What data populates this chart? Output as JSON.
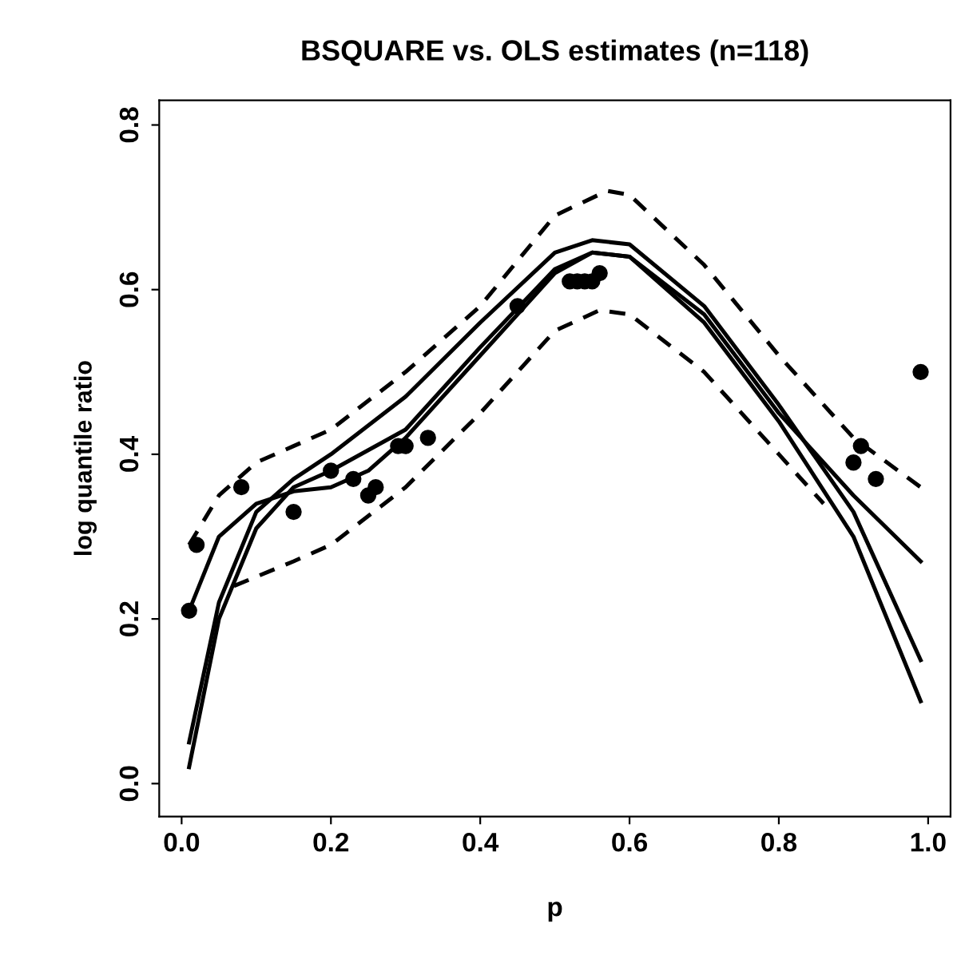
{
  "chart_data": {
    "type": "line",
    "title": "BSQUARE vs. OLS estimates (n=118)",
    "xlabel": "p",
    "ylabel": "log quantile ratio",
    "xlim": [
      -0.03,
      1.03
    ],
    "ylim": [
      -0.04,
      0.83
    ],
    "xticks": [
      {
        "value": 0,
        "label": "0.0"
      },
      0.2,
      0.4,
      0.6,
      0.8,
      {
        "value": 1,
        "label": "1.0"
      }
    ],
    "yticks": [
      {
        "value": 0,
        "label": "0.0"
      },
      0.2,
      0.4,
      0.6,
      0.8
    ],
    "grid": false,
    "legend": false,
    "series": [
      {
        "line_style": "dashed",
        "color": "#000000",
        "x": [
          0.01,
          0.05,
          0.1,
          0.15,
          0.2,
          0.3,
          0.4,
          0.5,
          0.57,
          0.6,
          0.7,
          0.8,
          0.9,
          0.99
        ],
        "values": [
          0.29,
          0.35,
          0.39,
          0.41,
          0.43,
          0.5,
          0.58,
          0.69,
          0.72,
          0.715,
          0.63,
          0.52,
          0.42,
          0.36
        ]
      },
      {
        "line_style": "dashed",
        "color": "#000000",
        "x": [
          0.07,
          0.15,
          0.2,
          0.3,
          0.4,
          0.5,
          0.56,
          0.6,
          0.7,
          0.8,
          0.86
        ],
        "values": [
          0.24,
          0.27,
          0.29,
          0.36,
          0.45,
          0.55,
          0.575,
          0.57,
          0.5,
          0.4,
          0.34
        ]
      },
      {
        "line_style": "solid",
        "color": "#000000",
        "x": [
          0.01,
          0.05,
          0.1,
          0.15,
          0.2,
          0.25,
          0.3,
          0.4,
          0.5,
          0.55,
          0.6,
          0.7,
          0.8,
          0.9,
          0.99
        ],
        "values": [
          0.21,
          0.3,
          0.34,
          0.355,
          0.36,
          0.38,
          0.42,
          0.52,
          0.62,
          0.645,
          0.64,
          0.57,
          0.45,
          0.35,
          0.27
        ]
      },
      {
        "line_style": "solid",
        "color": "#000000",
        "x": [
          0.01,
          0.05,
          0.1,
          0.15,
          0.2,
          0.3,
          0.4,
          0.5,
          0.55,
          0.6,
          0.7,
          0.8,
          0.9,
          0.99
        ],
        "values": [
          0.05,
          0.22,
          0.33,
          0.37,
          0.4,
          0.47,
          0.56,
          0.645,
          0.66,
          0.655,
          0.58,
          0.46,
          0.33,
          0.15
        ]
      },
      {
        "line_style": "solid",
        "color": "#000000",
        "x": [
          0.01,
          0.05,
          0.1,
          0.15,
          0.2,
          0.3,
          0.4,
          0.5,
          0.55,
          0.6,
          0.7,
          0.8,
          0.9,
          0.99
        ],
        "values": [
          0.02,
          0.2,
          0.31,
          0.36,
          0.38,
          0.43,
          0.53,
          0.625,
          0.645,
          0.64,
          0.56,
          0.44,
          0.3,
          0.1
        ]
      },
      {
        "type": "scatter",
        "marker": "circle",
        "color": "#000000",
        "x": [
          0.01,
          0.02,
          0.08,
          0.15,
          0.2,
          0.23,
          0.25,
          0.26,
          0.29,
          0.3,
          0.33,
          0.45,
          0.52,
          0.53,
          0.54,
          0.55,
          0.56,
          0.9,
          0.91,
          0.93,
          0.99
        ],
        "values": [
          0.21,
          0.29,
          0.36,
          0.33,
          0.38,
          0.37,
          0.35,
          0.36,
          0.41,
          0.41,
          0.42,
          0.58,
          0.61,
          0.61,
          0.61,
          0.61,
          0.62,
          0.39,
          0.41,
          0.37,
          0.5
        ]
      }
    ]
  }
}
